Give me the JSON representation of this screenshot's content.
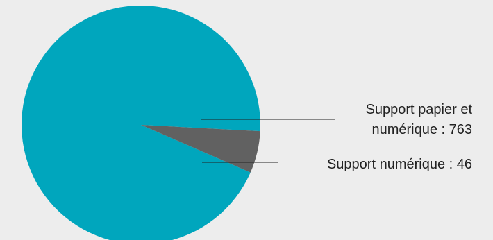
{
  "chart_data": {
    "type": "pie",
    "slices": [
      {
        "label_lines": [
          "Support papier et",
          "numérique : 763"
        ],
        "value": 763,
        "color": "#00a6bd"
      },
      {
        "label_lines": [
          "Support numérique : 46"
        ],
        "value": 46,
        "color": "#616161"
      }
    ]
  }
}
